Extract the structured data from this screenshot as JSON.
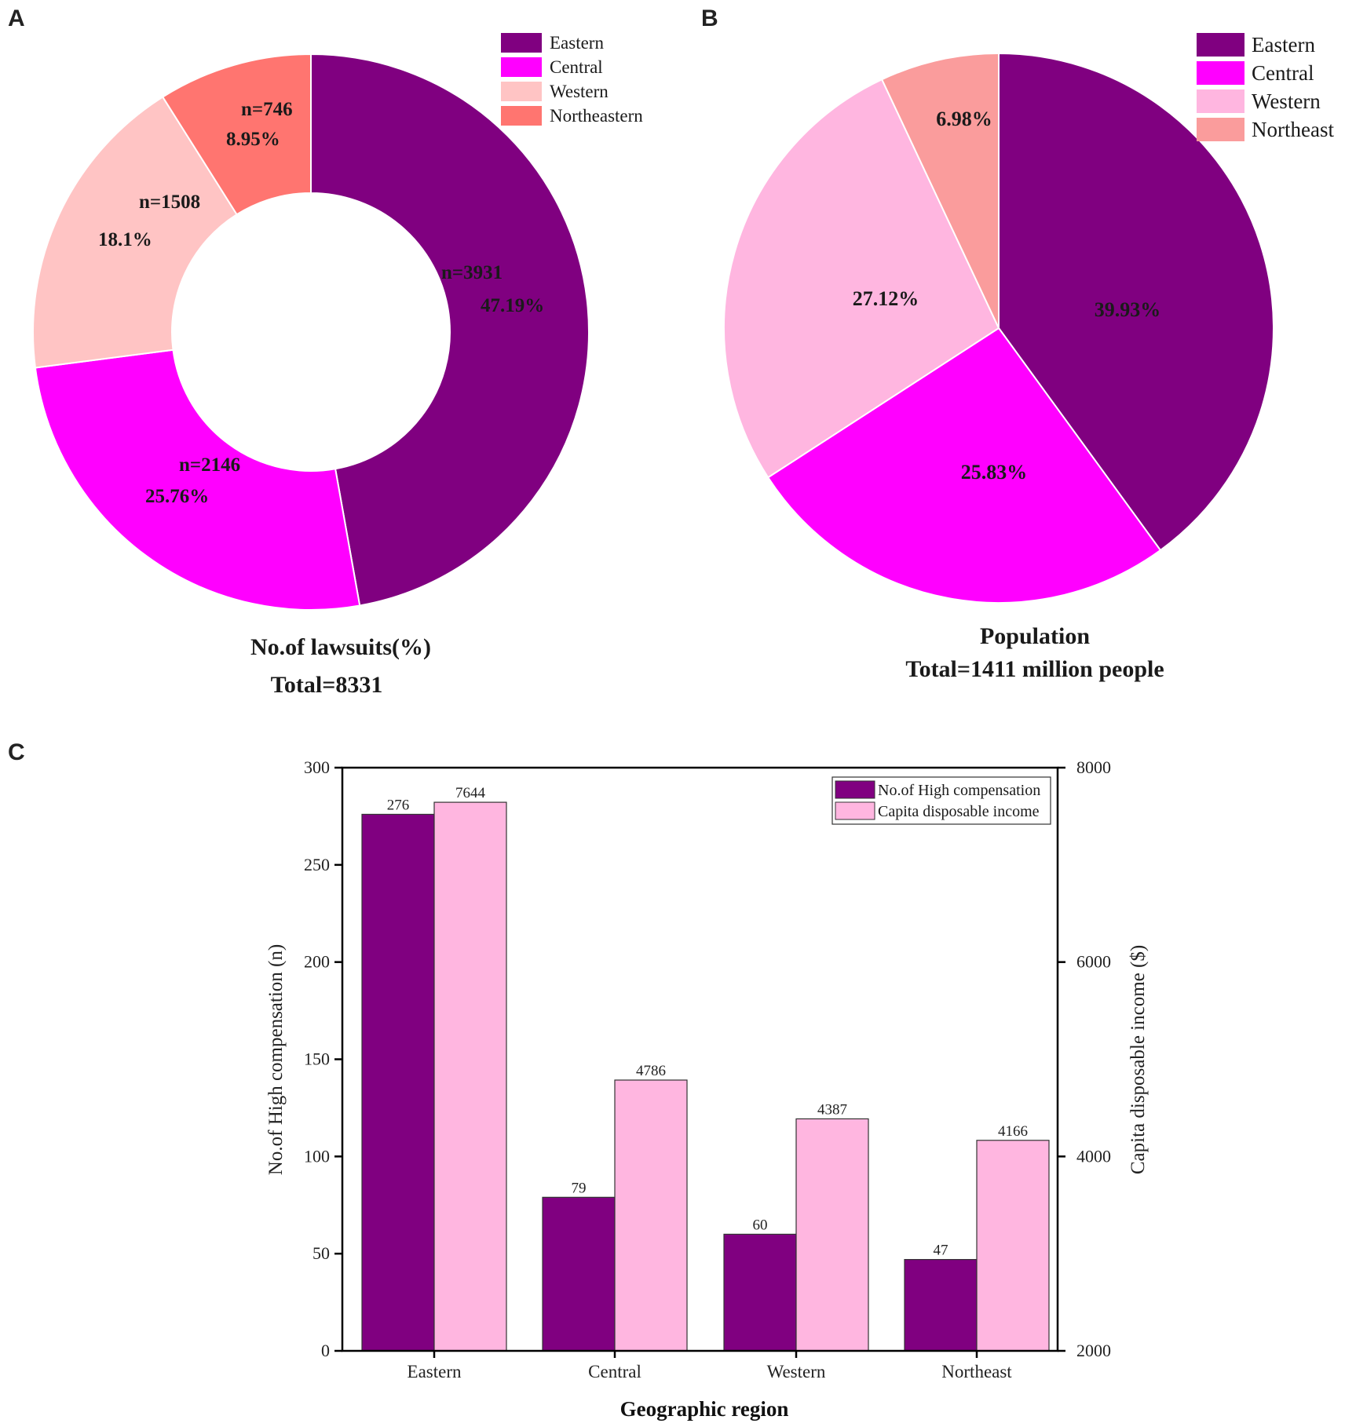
{
  "panels": {
    "a": "A",
    "b": "B",
    "c": "C"
  },
  "colors": {
    "eastern": "#800080",
    "central": "#ff00ff",
    "western_a": "#ffc4c4",
    "northeastern_a": "#ff7570",
    "western_b": "#ffb6e0",
    "northeast_b": "#fa9c9c",
    "bar_compensation": "#800080",
    "bar_income": "#ffb6e0"
  },
  "chart_data": [
    {
      "id": "A",
      "type": "pie",
      "donut": true,
      "title": "No.of lawsuits(%)",
      "subtitle": "Total=8331",
      "legend": [
        "Eastern",
        "Central",
        "Western",
        "Northeastern"
      ],
      "legend_position": "top-right",
      "slices": [
        {
          "name": "Eastern",
          "n": 3931,
          "n_label": "n=3931",
          "percent": 47.19,
          "pct_label": "47.19%"
        },
        {
          "name": "Central",
          "n": 2146,
          "n_label": "n=2146",
          "percent": 25.76,
          "pct_label": "25.76%"
        },
        {
          "name": "Western",
          "n": 1508,
          "n_label": "n=1508",
          "percent": 18.1,
          "pct_label": "18.1%"
        },
        {
          "name": "Northeastern",
          "n": 746,
          "n_label": "n=746",
          "percent": 8.95,
          "pct_label": "8.95%"
        }
      ]
    },
    {
      "id": "B",
      "type": "pie",
      "donut": false,
      "title": "Population",
      "subtitle": "Total=1411 million people",
      "legend": [
        "Eastern",
        "Central",
        "Western",
        "Northeast"
      ],
      "legend_position": "top-right",
      "slices": [
        {
          "name": "Eastern",
          "percent": 39.93,
          "pct_label": "39.93%"
        },
        {
          "name": "Central",
          "percent": 25.83,
          "pct_label": "25.83%"
        },
        {
          "name": "Western",
          "percent": 27.12,
          "pct_label": "27.12%"
        },
        {
          "name": "Northeast",
          "percent": 6.98,
          "pct_label": "6.98%"
        }
      ]
    },
    {
      "id": "C",
      "type": "bar",
      "categories": [
        "Eastern",
        "Central",
        "Western",
        "Northeast"
      ],
      "xlabel": "Geographic region",
      "ylabel": "No.of High compensation (n)",
      "ylabel_right": "Capita disposable income ($)",
      "ylim": [
        0,
        300
      ],
      "ylim_right": [
        2000,
        8000
      ],
      "yticks": [
        "0",
        "50",
        "100",
        "150",
        "200",
        "250",
        "300"
      ],
      "yticks_right": [
        "2000",
        "4000",
        "6000",
        "8000"
      ],
      "legend_position": "top-right",
      "series": [
        {
          "name": "No.of High compensation",
          "axis": "left",
          "values": [
            276,
            79,
            60,
            47
          ]
        },
        {
          "name": "Capita disposable income",
          "axis": "right",
          "values": [
            7644,
            4786,
            4387,
            4166
          ]
        }
      ]
    }
  ]
}
